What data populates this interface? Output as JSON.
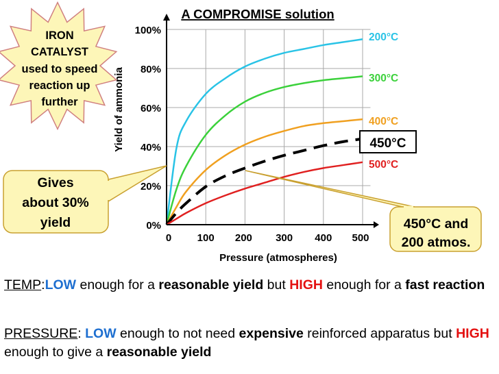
{
  "chart_data": {
    "type": "line",
    "title": "A COMPROMISE solution",
    "xlabel": "Pressure (atmospheres)",
    "ylabel": "Yield of ammonia",
    "xlim": [
      0,
      520
    ],
    "ylim": [
      0,
      100
    ],
    "x_ticks": [
      0,
      100,
      200,
      300,
      400,
      500
    ],
    "y_ticks": [
      0,
      20,
      40,
      60,
      80,
      100
    ],
    "x_tick_labels": [
      "0",
      "100",
      "200",
      "300",
      "400",
      "500"
    ],
    "y_tick_labels": [
      "0%",
      "20%",
      "40%",
      "60%",
      "80%",
      "100%"
    ],
    "grid": true,
    "x": [
      0,
      25,
      50,
      100,
      150,
      200,
      250,
      300,
      350,
      400,
      450,
      500
    ],
    "series": [
      {
        "name": "200°C",
        "color": "#29c3e6",
        "values": [
          0,
          39,
          53,
          67,
          75,
          81,
          85,
          88,
          90,
          92,
          93.5,
          95
        ]
      },
      {
        "name": "300°C",
        "color": "#3bd13b",
        "values": [
          0,
          18,
          30,
          46,
          56,
          63,
          67.5,
          70.5,
          72.5,
          74,
          75,
          76
        ]
      },
      {
        "name": "400°C",
        "color": "#f0a020",
        "values": [
          0,
          9,
          17,
          28,
          35.5,
          41,
          45,
          48,
          50.5,
          52,
          53,
          54
        ]
      },
      {
        "name": "450°C",
        "color": "#000000",
        "dashed": true,
        "values": [
          0,
          6,
          11,
          19.5,
          25,
          29,
          32.5,
          35.5,
          38,
          40.5,
          42.5,
          44
        ]
      },
      {
        "name": "500°C",
        "color": "#e02020",
        "values": [
          0,
          3,
          6,
          11,
          15,
          18.5,
          21.5,
          24.5,
          27,
          29,
          30.5,
          32
        ]
      }
    ],
    "annotations": {
      "catalyst": "IRON CATALYST used to speed reaction up further",
      "yield_callout": "Gives about 30% yield",
      "condition_callout": "450°C and 200 atmos."
    }
  },
  "callouts": {
    "catalyst_lines": [
      "IRON",
      "CATALYST",
      "used to speed",
      "reaction up",
      "further"
    ],
    "yield_lines": [
      "Gives",
      "about 30%",
      "yield"
    ],
    "condition_lines": [
      "450°C and",
      "200 atmos."
    ],
    "label_450": "450°C"
  },
  "text": {
    "temp_label": "TEMP",
    "temp_colon": ":",
    "temp_low": "LOW",
    "temp_mid1": " enough for a ",
    "temp_reasonable": "reasonable yield",
    "temp_mid2": " but ",
    "temp_high": "HIGH",
    "temp_mid3": " enough for a ",
    "temp_fast": "fast reaction",
    "pressure_label": "PRESSURE",
    "pressure_colon": ": ",
    "pressure_low": "LOW",
    "pressure_mid1": " enough to not need ",
    "pressure_expensive": "expensive",
    "pressure_mid2": " reinforced apparatus but ",
    "pressure_high": "HIGH",
    "pressure_mid3": " enough to give a ",
    "pressure_reasonable": "reasonable yield"
  }
}
